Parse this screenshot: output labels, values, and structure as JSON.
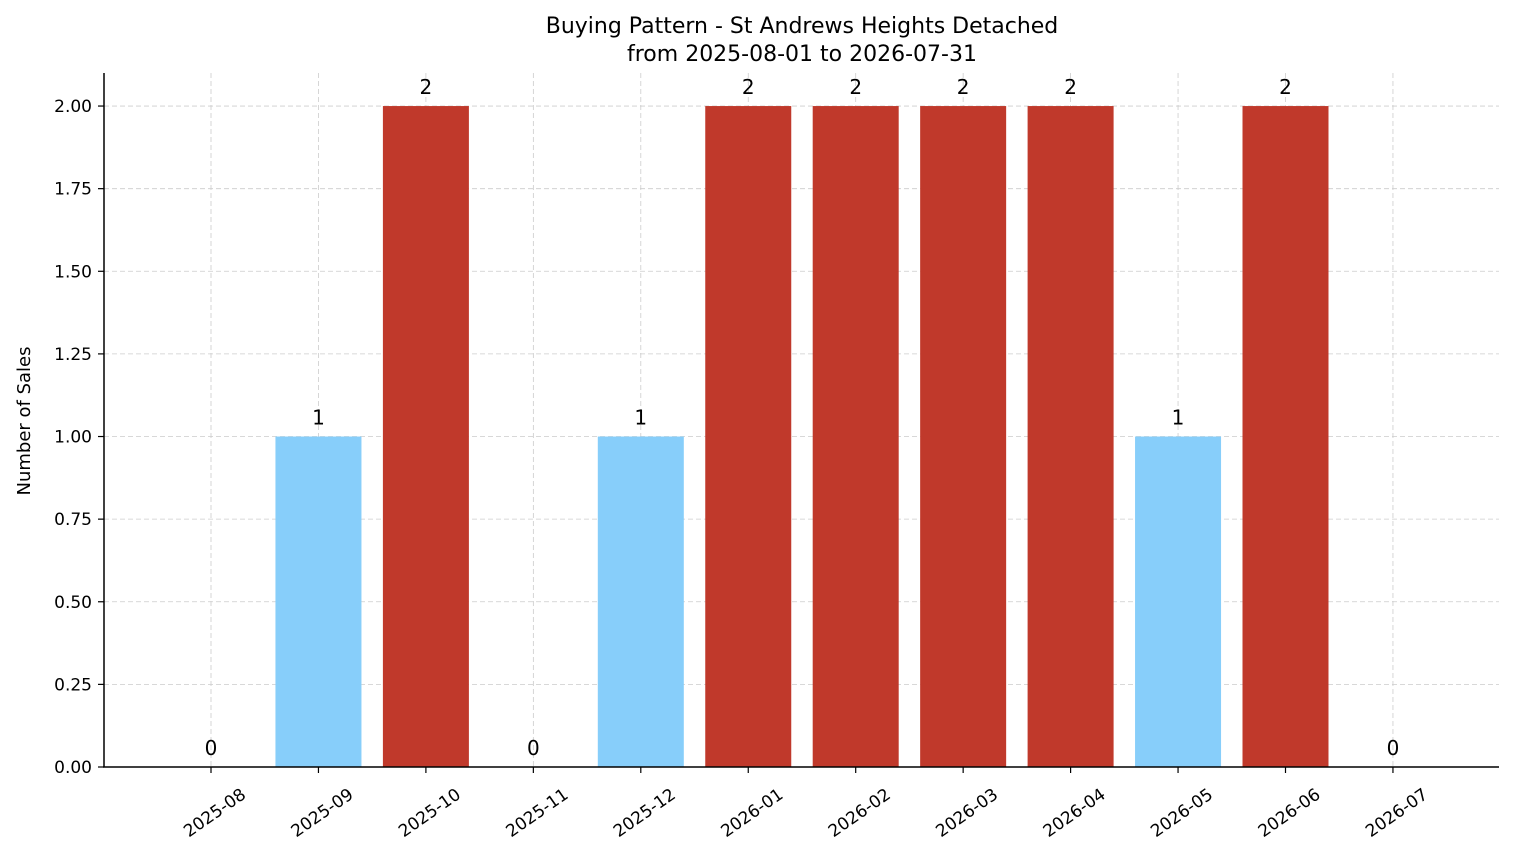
{
  "chart_data": {
    "type": "bar",
    "title": "Buying Pattern - St Andrews Heights Detached",
    "subtitle": "from 2025-08-01 to 2026-07-31",
    "xlabel": "",
    "ylabel": "Number of Sales",
    "ylim": [
      0,
      2.1
    ],
    "yticks": [
      "0.00",
      "0.25",
      "0.50",
      "0.75",
      "1.00",
      "1.25",
      "1.50",
      "1.75",
      "2.00"
    ],
    "categories": [
      "2025-08",
      "2025-09",
      "2025-10",
      "2025-11",
      "2025-12",
      "2026-01",
      "2026-02",
      "2026-03",
      "2026-04",
      "2026-05",
      "2026-06",
      "2026-07"
    ],
    "values": [
      0,
      1,
      2,
      0,
      1,
      2,
      2,
      2,
      2,
      1,
      2,
      0
    ],
    "data_labels": [
      "0",
      "1",
      "2",
      "0",
      "1",
      "2",
      "2",
      "2",
      "2",
      "1",
      "2",
      "0"
    ],
    "grid": true,
    "colors": {
      "low": "#87CEFA",
      "high": "#C0392B"
    }
  }
}
